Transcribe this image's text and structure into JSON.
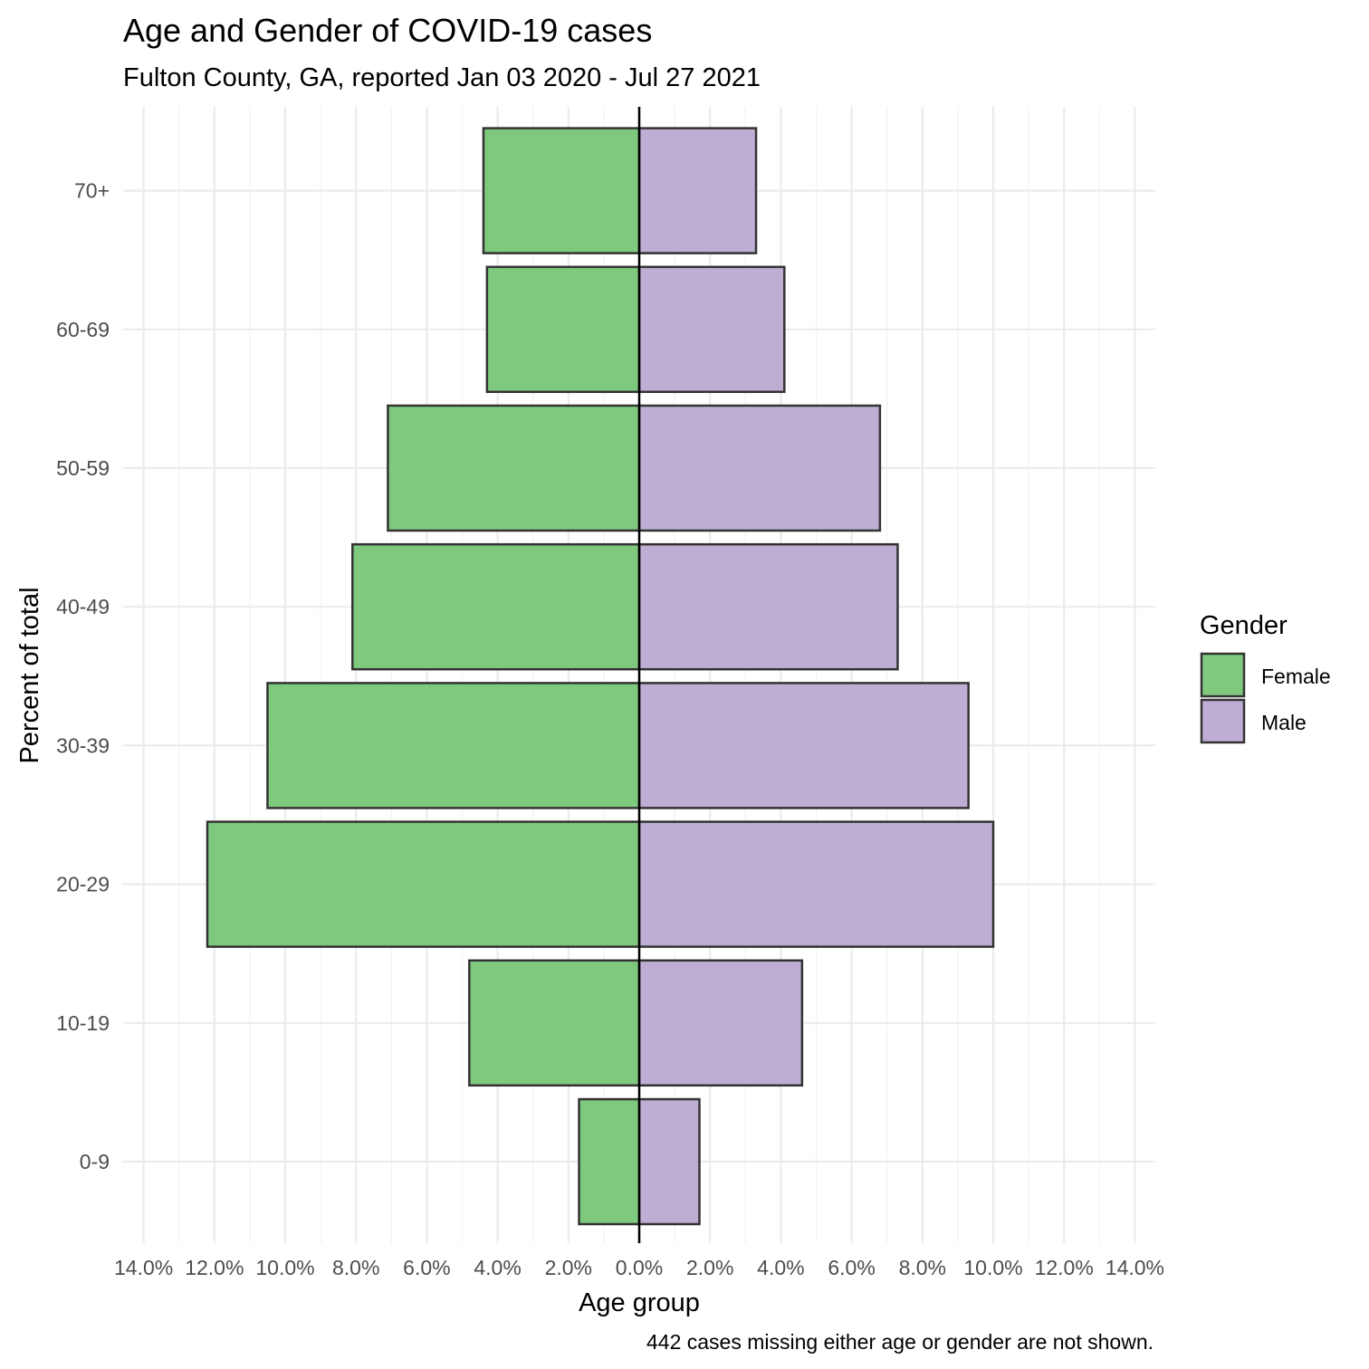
{
  "chart_data": {
    "type": "bar",
    "orientation": "horizontal-diverging",
    "title": "Age and Gender of COVID-19 cases",
    "subtitle": "Fulton County, GA, reported Jan 03 2020 - Jul 27 2021",
    "xlabel": "Age group",
    "ylabel": "Percent of total",
    "caption": "442 cases missing either age or gender are not shown.",
    "categories": [
      "0-9",
      "10-19",
      "20-29",
      "30-39",
      "40-49",
      "50-59",
      "60-69",
      "70+"
    ],
    "series": [
      {
        "name": "Female",
        "color": "#7fc97f",
        "values": [
          1.7,
          4.8,
          12.2,
          10.5,
          8.1,
          7.1,
          4.3,
          4.4
        ]
      },
      {
        "name": "Male",
        "color": "#beaed4",
        "values": [
          1.7,
          4.6,
          10.0,
          9.3,
          7.3,
          6.8,
          4.1,
          3.3
        ]
      }
    ],
    "xlim": [
      -14,
      14
    ],
    "x_ticks": [
      "14.0%",
      "12.0%",
      "10.0%",
      "8.0%",
      "6.0%",
      "4.0%",
      "2.0%",
      "0.0%",
      "2.0%",
      "4.0%",
      "6.0%",
      "8.0%",
      "10.0%",
      "12.0%",
      "14.0%"
    ],
    "grid": true,
    "legend": {
      "title": "Gender",
      "position": "right"
    }
  }
}
